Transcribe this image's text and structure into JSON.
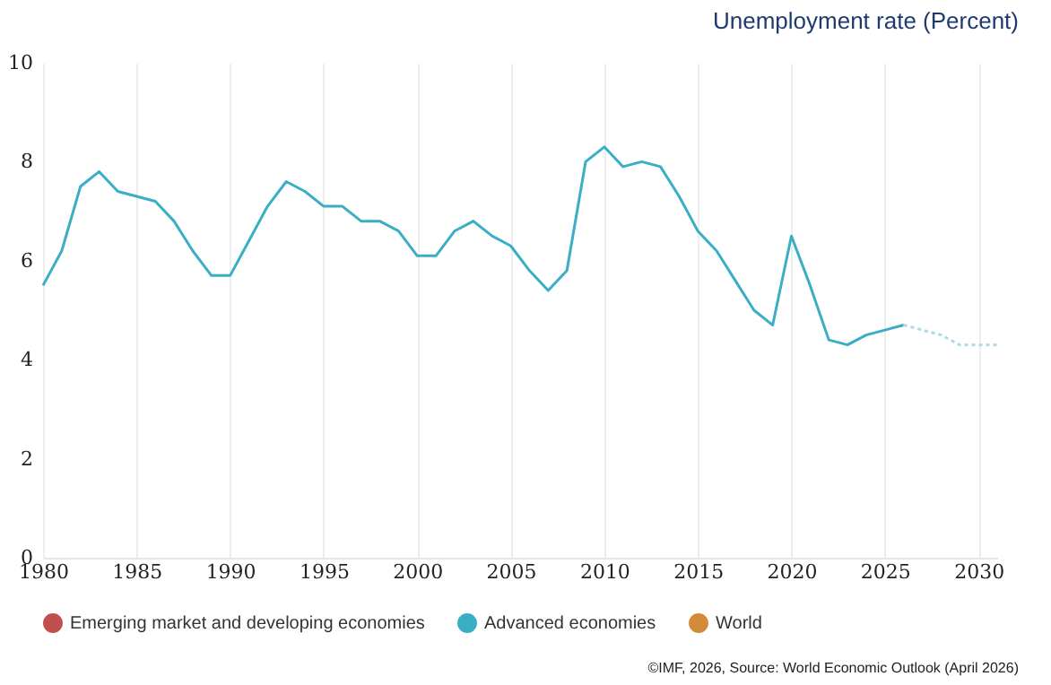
{
  "chart_data": {
    "type": "line",
    "title": "Unemployment rate (Percent)",
    "x": [
      1980,
      1981,
      1982,
      1983,
      1984,
      1985,
      1986,
      1987,
      1988,
      1989,
      1990,
      1991,
      1992,
      1993,
      1994,
      1995,
      1996,
      1997,
      1998,
      1999,
      2000,
      2001,
      2002,
      2003,
      2004,
      2005,
      2006,
      2007,
      2008,
      2009,
      2010,
      2011,
      2012,
      2013,
      2014,
      2015,
      2016,
      2017,
      2018,
      2019,
      2020,
      2021,
      2022,
      2023,
      2024,
      2025,
      2026
    ],
    "series": [
      {
        "name": "Emerging market and developing economies",
        "color": "#c0504d",
        "values": [
          null,
          null,
          null,
          null,
          null,
          null,
          null,
          null,
          null,
          null,
          null,
          null,
          null,
          null,
          null,
          null,
          null,
          null,
          null,
          null,
          null,
          null,
          null,
          null,
          null,
          null,
          null,
          null,
          null,
          null,
          null,
          null,
          null,
          null,
          null,
          null,
          null,
          null,
          null,
          null,
          null,
          null,
          null,
          null,
          null,
          null,
          null
        ]
      },
      {
        "name": "Advanced economies",
        "color": "#3aaec4",
        "values": [
          5.5,
          6.2,
          7.5,
          7.8,
          7.4,
          7.3,
          7.2,
          6.8,
          6.2,
          5.7,
          5.7,
          6.4,
          7.1,
          7.6,
          7.4,
          7.1,
          7.1,
          6.8,
          6.8,
          6.6,
          6.1,
          6.1,
          6.6,
          6.8,
          6.5,
          6.3,
          5.8,
          5.4,
          5.8,
          8.0,
          8.3,
          7.9,
          8.0,
          7.9,
          7.3,
          6.6,
          6.2,
          5.6,
          5.0,
          4.7,
          6.5,
          5.5,
          4.4,
          4.3,
          4.5,
          4.6,
          4.7
        ]
      },
      {
        "name": "World",
        "color": "#d38b3a",
        "values": [
          null,
          null,
          null,
          null,
          null,
          null,
          null,
          null,
          null,
          null,
          null,
          null,
          null,
          null,
          null,
          null,
          null,
          null,
          null,
          null,
          null,
          null,
          null,
          null,
          null,
          null,
          null,
          null,
          null,
          null,
          null,
          null,
          null,
          null,
          null,
          null,
          null,
          null,
          null,
          null,
          null,
          null,
          null,
          null,
          null,
          null,
          null
        ]
      },
      {
        "color": "#a9dce6",
        "line_style": "dotted",
        "x": [
          2026,
          2027,
          2028,
          2029,
          2030,
          2031
        ],
        "values": [
          4.7,
          4.6,
          4.5,
          4.3,
          4.3,
          4.3
        ]
      }
    ],
    "xlim": [
      1980,
      2031
    ],
    "xticks": [
      1980,
      1985,
      1990,
      1995,
      2000,
      2005,
      2010,
      2015,
      2020,
      2025,
      2030
    ],
    "ylim": [
      0,
      10
    ],
    "yticks": [
      0,
      2,
      4,
      6,
      8,
      10
    ],
    "grid": "x",
    "legend": "bottom",
    "line_style": "solid",
    "annotations": [
      "©IMF, 2026, Source: World Economic Outlook (April 2026)"
    ]
  }
}
